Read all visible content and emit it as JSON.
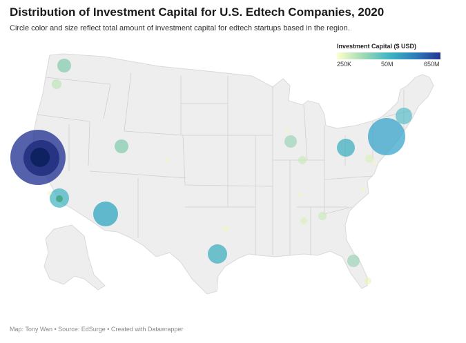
{
  "header": {
    "title": "Distribution of Investment Capital for U.S. Edtech Companies, 2020",
    "subtitle": "Circle color and size reflect total amount of investment capital for edtech startups based in the region."
  },
  "legend": {
    "title": "Investment Capital ($ USD)",
    "ticks": [
      "250K",
      "50M",
      "650M"
    ],
    "colors": [
      "#ffffcc",
      "#a1dab4",
      "#41b6c4",
      "#2c7fb8",
      "#253494"
    ]
  },
  "footer": "Map: Tony Wan • Source: EdSurge • Created with Datawrapper",
  "map": {
    "land_color": "#eeeeee",
    "border_color": "#cccccc"
  }
}
